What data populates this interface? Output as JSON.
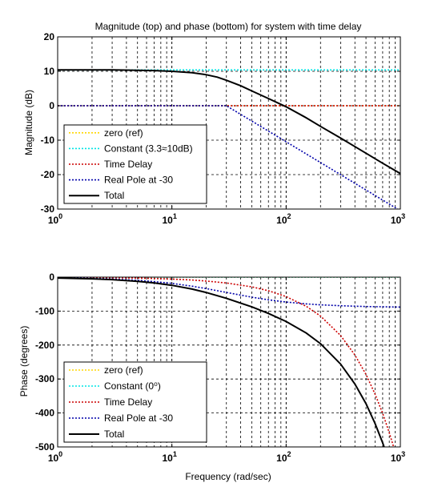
{
  "chart_data": [
    {
      "type": "line",
      "title": "Magnitude (top) and phase (bottom) for system with time delay",
      "xlabel": "",
      "ylabel": "Magnitude (dB)",
      "xscale": "log",
      "xlim": [
        1,
        1000
      ],
      "ylim": [
        -30,
        20
      ],
      "yticks": [
        20,
        10,
        0,
        -10,
        -20,
        -30
      ],
      "ytick_labels": [
        "20",
        "10",
        "0",
        "-10",
        "-20",
        "-30"
      ],
      "xticks": [
        1,
        10,
        100,
        1000
      ],
      "xtick_base": "10",
      "xtick_exponents": [
        "0",
        "1",
        "2",
        "3"
      ],
      "grid": true,
      "legend_position": "bottom-left",
      "series": [
        {
          "name": "zero (ref)",
          "color": "#ffd700",
          "style": "dotted",
          "x": [
            1,
            1000
          ],
          "y": [
            0,
            0
          ]
        },
        {
          "name": "Constant (3.3≈10dB)",
          "color": "#00e5e5",
          "style": "dotted",
          "x": [
            1,
            1000
          ],
          "y": [
            10.4,
            10.4
          ]
        },
        {
          "name": "Time Delay",
          "color": "#cc0000",
          "style": "dotted",
          "x": [
            1,
            1000
          ],
          "y": [
            0,
            0
          ]
        },
        {
          "name": "Real Pole at -30",
          "color": "#0000aa",
          "style": "dotted",
          "x": [
            1,
            30,
            1000
          ],
          "y": [
            0,
            0,
            -30.5
          ]
        },
        {
          "name": "Total",
          "color": "#000000",
          "style": "solid",
          "x": [
            1,
            2,
            3,
            5,
            7,
            10,
            15,
            20,
            25,
            30,
            40,
            50,
            70,
            100,
            150,
            200,
            300,
            500,
            700,
            1000
          ],
          "y": [
            10.4,
            10.4,
            10.4,
            10.3,
            10.2,
            10.0,
            9.6,
            9.0,
            8.3,
            7.4,
            5.8,
            4.3,
            2.1,
            -0.3,
            -3.5,
            -6.0,
            -9.4,
            -13.8,
            -16.7,
            -19.7
          ]
        }
      ]
    },
    {
      "type": "line",
      "title": "",
      "xlabel": "Frequency (rad/sec)",
      "ylabel": "Phase (degrees)",
      "xscale": "log",
      "xlim": [
        1,
        1000
      ],
      "ylim": [
        -500,
        0
      ],
      "yticks": [
        0,
        -100,
        -200,
        -300,
        -400,
        -500
      ],
      "ytick_labels": [
        "0",
        "-100",
        "-200",
        "-300",
        "-400",
        "-500"
      ],
      "xticks": [
        1,
        10,
        100,
        1000
      ],
      "xtick_base": "10",
      "xtick_exponents": [
        "0",
        "1",
        "2",
        "3"
      ],
      "grid": true,
      "legend_position": "bottom-left",
      "series": [
        {
          "name": "zero (ref)",
          "color": "#ffd700",
          "style": "dotted",
          "x": [
            1,
            1000
          ],
          "y": [
            0,
            0
          ]
        },
        {
          "name": "Constant (0⁰)",
          "color": "#00e5e5",
          "style": "dotted",
          "x": [
            1,
            1000
          ],
          "y": [
            0,
            0
          ]
        },
        {
          "name": "Time Delay",
          "color": "#cc0000",
          "style": "dotted",
          "x": [
            1,
            2,
            3,
            5,
            7,
            10,
            15,
            20,
            30,
            50,
            70,
            100,
            150,
            200,
            300,
            400,
            500,
            600,
            700,
            800,
            870
          ],
          "y": [
            -0.6,
            -1.1,
            -1.7,
            -2.9,
            -4.0,
            -5.7,
            -8.6,
            -11.5,
            -17.2,
            -28.6,
            -40.1,
            -57.3,
            -85.9,
            -114.6,
            -171.9,
            -229.2,
            -286.5,
            -343.8,
            -401.1,
            -458.4,
            -498.5
          ]
        },
        {
          "name": "Real Pole at -30",
          "color": "#0000aa",
          "style": "dotted",
          "x": [
            1,
            2,
            3,
            5,
            7,
            10,
            15,
            20,
            30,
            50,
            70,
            100,
            150,
            200,
            300,
            500,
            1000
          ],
          "y": [
            -1.9,
            -3.8,
            -5.7,
            -9.5,
            -13.1,
            -18.4,
            -26.6,
            -33.7,
            -45.0,
            -59.0,
            -66.8,
            -73.3,
            -78.7,
            -81.5,
            -84.3,
            -86.6,
            -88.3
          ]
        },
        {
          "name": "Total",
          "color": "#000000",
          "style": "solid",
          "x": [
            1,
            2,
            3,
            5,
            7,
            10,
            15,
            20,
            30,
            50,
            70,
            100,
            150,
            200,
            300,
            400,
            500,
            600,
            700,
            770
          ],
          "y": [
            -2.5,
            -4.9,
            -7.4,
            -12.4,
            -17.1,
            -24.1,
            -35.2,
            -45.2,
            -62.2,
            -87.6,
            -106.9,
            -130.6,
            -164.6,
            -196.1,
            -256.2,
            -314.7,
            -372.7,
            -430.4,
            -487.9,
            -528.0
          ]
        }
      ]
    }
  ]
}
